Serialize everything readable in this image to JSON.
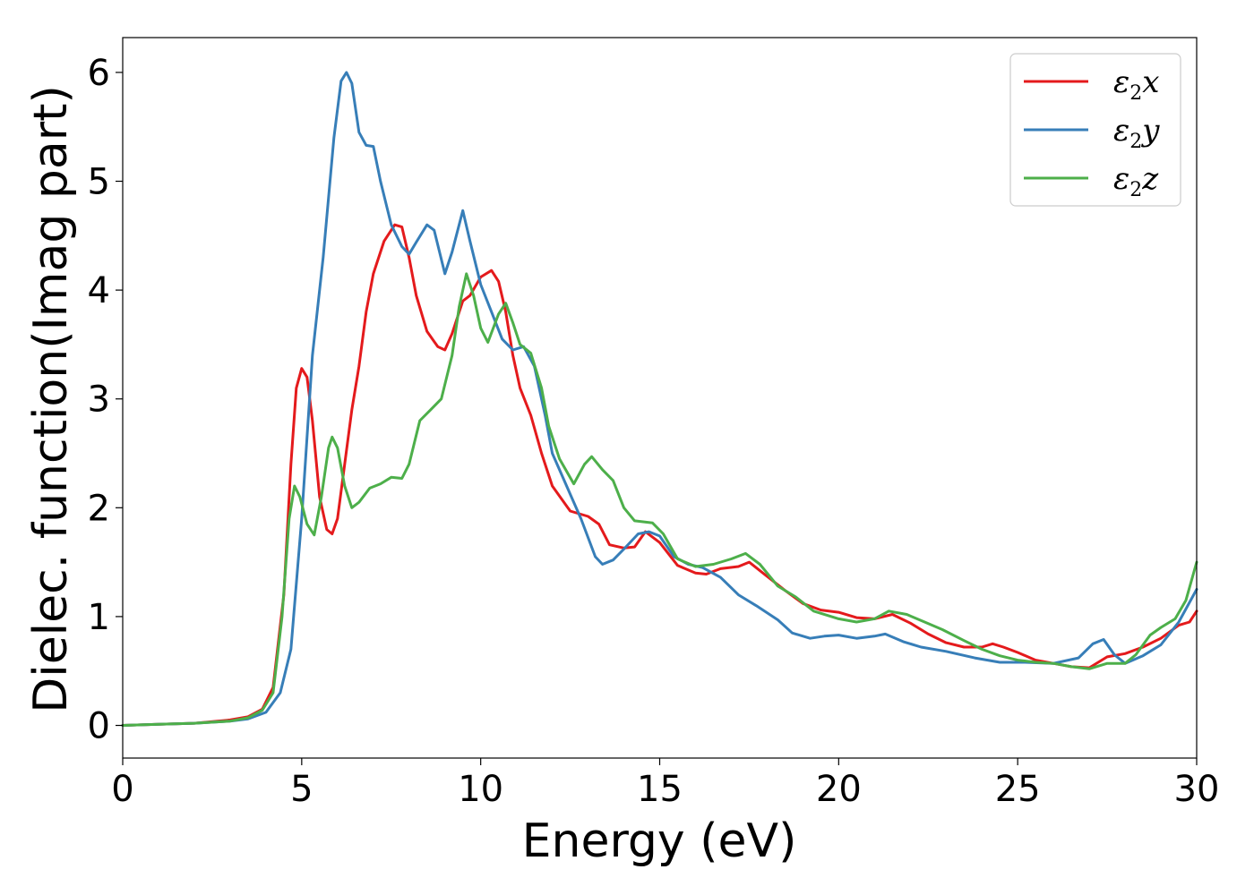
{
  "chart_data": {
    "type": "line",
    "title": "",
    "xlabel": "Energy (eV)",
    "ylabel": "Dielec. function(Imag part)",
    "xlim": [
      0,
      30
    ],
    "ylim": [
      -0.3,
      6.32
    ],
    "xticks": [
      0,
      5,
      10,
      15,
      20,
      25,
      30
    ],
    "yticks": [
      0,
      1,
      2,
      3,
      4,
      5,
      6
    ],
    "xtick_labels": [
      "0",
      "5",
      "10",
      "15",
      "20",
      "25",
      "30"
    ],
    "ytick_labels": [
      "0",
      "1",
      "2",
      "3",
      "4",
      "5",
      "6"
    ],
    "grid": false,
    "legend_position": "top-right",
    "series": [
      {
        "name": "ε2x",
        "legend_main": "ε",
        "legend_sub": "2",
        "legend_tail": "x",
        "color": "#e41a1c",
        "points": [
          [
            0,
            0
          ],
          [
            1,
            0.01
          ],
          [
            2,
            0.02
          ],
          [
            3,
            0.05
          ],
          [
            3.5,
            0.08
          ],
          [
            3.9,
            0.15
          ],
          [
            4.2,
            0.35
          ],
          [
            4.5,
            1.2
          ],
          [
            4.7,
            2.4
          ],
          [
            4.85,
            3.1
          ],
          [
            5.0,
            3.28
          ],
          [
            5.15,
            3.2
          ],
          [
            5.3,
            2.8
          ],
          [
            5.5,
            2.1
          ],
          [
            5.7,
            1.8
          ],
          [
            5.85,
            1.76
          ],
          [
            6.0,
            1.9
          ],
          [
            6.2,
            2.4
          ],
          [
            6.4,
            2.9
          ],
          [
            6.6,
            3.3
          ],
          [
            6.8,
            3.8
          ],
          [
            7.0,
            4.15
          ],
          [
            7.3,
            4.45
          ],
          [
            7.6,
            4.6
          ],
          [
            7.8,
            4.58
          ],
          [
            8.0,
            4.3
          ],
          [
            8.2,
            3.95
          ],
          [
            8.5,
            3.62
          ],
          [
            8.8,
            3.48
          ],
          [
            9.0,
            3.45
          ],
          [
            9.2,
            3.6
          ],
          [
            9.5,
            3.9
          ],
          [
            9.7,
            3.95
          ],
          [
            10.0,
            4.12
          ],
          [
            10.3,
            4.18
          ],
          [
            10.5,
            4.08
          ],
          [
            10.7,
            3.8
          ],
          [
            10.9,
            3.4
          ],
          [
            11.1,
            3.1
          ],
          [
            11.4,
            2.85
          ],
          [
            11.7,
            2.5
          ],
          [
            12.0,
            2.2
          ],
          [
            12.5,
            1.97
          ],
          [
            13.0,
            1.92
          ],
          [
            13.3,
            1.85
          ],
          [
            13.6,
            1.66
          ],
          [
            14.0,
            1.63
          ],
          [
            14.3,
            1.64
          ],
          [
            14.6,
            1.78
          ],
          [
            15.0,
            1.68
          ],
          [
            15.5,
            1.47
          ],
          [
            16.0,
            1.4
          ],
          [
            16.3,
            1.39
          ],
          [
            16.7,
            1.44
          ],
          [
            17.2,
            1.46
          ],
          [
            17.5,
            1.5
          ],
          [
            18.0,
            1.37
          ],
          [
            18.5,
            1.24
          ],
          [
            19.0,
            1.12
          ],
          [
            19.5,
            1.06
          ],
          [
            20.0,
            1.04
          ],
          [
            20.5,
            0.99
          ],
          [
            21.0,
            0.98
          ],
          [
            21.5,
            1.02
          ],
          [
            22.0,
            0.94
          ],
          [
            22.5,
            0.84
          ],
          [
            23.0,
            0.76
          ],
          [
            23.5,
            0.72
          ],
          [
            24.0,
            0.72
          ],
          [
            24.3,
            0.75
          ],
          [
            24.6,
            0.72
          ],
          [
            25.0,
            0.67
          ],
          [
            25.5,
            0.6
          ],
          [
            26.0,
            0.57
          ],
          [
            26.5,
            0.54
          ],
          [
            27.0,
            0.53
          ],
          [
            27.5,
            0.63
          ],
          [
            28.0,
            0.66
          ],
          [
            28.5,
            0.72
          ],
          [
            29.0,
            0.8
          ],
          [
            29.5,
            0.92
          ],
          [
            29.8,
            0.95
          ],
          [
            30.0,
            1.05
          ]
        ]
      },
      {
        "name": "ε2y",
        "legend_main": "ε",
        "legend_sub": "2",
        "legend_tail": "y",
        "color": "#377eb8",
        "points": [
          [
            0,
            0
          ],
          [
            1,
            0.01
          ],
          [
            2,
            0.02
          ],
          [
            3,
            0.04
          ],
          [
            3.5,
            0.06
          ],
          [
            4.0,
            0.12
          ],
          [
            4.4,
            0.3
          ],
          [
            4.7,
            0.7
          ],
          [
            5.0,
            1.9
          ],
          [
            5.3,
            3.4
          ],
          [
            5.6,
            4.3
          ],
          [
            5.9,
            5.4
          ],
          [
            6.1,
            5.92
          ],
          [
            6.25,
            6.0
          ],
          [
            6.4,
            5.9
          ],
          [
            6.6,
            5.45
          ],
          [
            6.8,
            5.33
          ],
          [
            7.0,
            5.32
          ],
          [
            7.2,
            5.0
          ],
          [
            7.5,
            4.6
          ],
          [
            7.8,
            4.4
          ],
          [
            8.0,
            4.33
          ],
          [
            8.2,
            4.44
          ],
          [
            8.5,
            4.6
          ],
          [
            8.7,
            4.55
          ],
          [
            9.0,
            4.15
          ],
          [
            9.2,
            4.35
          ],
          [
            9.5,
            4.73
          ],
          [
            9.7,
            4.45
          ],
          [
            10.0,
            4.05
          ],
          [
            10.3,
            3.8
          ],
          [
            10.6,
            3.55
          ],
          [
            10.9,
            3.45
          ],
          [
            11.2,
            3.48
          ],
          [
            11.5,
            3.3
          ],
          [
            11.8,
            2.85
          ],
          [
            12.0,
            2.5
          ],
          [
            12.4,
            2.2
          ],
          [
            12.8,
            1.9
          ],
          [
            13.2,
            1.55
          ],
          [
            13.4,
            1.48
          ],
          [
            13.7,
            1.52
          ],
          [
            14.0,
            1.62
          ],
          [
            14.4,
            1.76
          ],
          [
            14.7,
            1.78
          ],
          [
            15.0,
            1.74
          ],
          [
            15.4,
            1.55
          ],
          [
            15.8,
            1.48
          ],
          [
            16.2,
            1.45
          ],
          [
            16.7,
            1.36
          ],
          [
            17.2,
            1.2
          ],
          [
            17.7,
            1.1
          ],
          [
            18.3,
            0.97
          ],
          [
            18.7,
            0.85
          ],
          [
            19.2,
            0.8
          ],
          [
            19.6,
            0.82
          ],
          [
            20.0,
            0.83
          ],
          [
            20.5,
            0.8
          ],
          [
            21.0,
            0.82
          ],
          [
            21.3,
            0.84
          ],
          [
            21.8,
            0.77
          ],
          [
            22.3,
            0.72
          ],
          [
            23.0,
            0.68
          ],
          [
            23.8,
            0.62
          ],
          [
            24.5,
            0.58
          ],
          [
            25.2,
            0.58
          ],
          [
            26.0,
            0.57
          ],
          [
            26.7,
            0.62
          ],
          [
            27.1,
            0.75
          ],
          [
            27.4,
            0.79
          ],
          [
            27.7,
            0.65
          ],
          [
            28.0,
            0.57
          ],
          [
            28.5,
            0.64
          ],
          [
            29.0,
            0.74
          ],
          [
            29.5,
            0.95
          ],
          [
            30.0,
            1.25
          ]
        ]
      },
      {
        "name": "ε2z",
        "legend_main": "ε",
        "legend_sub": "2",
        "legend_tail": "z",
        "color": "#4daf4a",
        "points": [
          [
            0,
            0
          ],
          [
            1,
            0.01
          ],
          [
            2,
            0.02
          ],
          [
            3,
            0.04
          ],
          [
            3.5,
            0.07
          ],
          [
            3.9,
            0.14
          ],
          [
            4.2,
            0.3
          ],
          [
            4.45,
            1.0
          ],
          [
            4.65,
            1.9
          ],
          [
            4.8,
            2.2
          ],
          [
            4.95,
            2.1
          ],
          [
            5.15,
            1.85
          ],
          [
            5.35,
            1.75
          ],
          [
            5.55,
            2.1
          ],
          [
            5.75,
            2.55
          ],
          [
            5.85,
            2.65
          ],
          [
            6.0,
            2.55
          ],
          [
            6.2,
            2.2
          ],
          [
            6.4,
            2.0
          ],
          [
            6.6,
            2.05
          ],
          [
            6.9,
            2.18
          ],
          [
            7.2,
            2.22
          ],
          [
            7.5,
            2.28
          ],
          [
            7.8,
            2.27
          ],
          [
            8.0,
            2.4
          ],
          [
            8.3,
            2.8
          ],
          [
            8.6,
            2.9
          ],
          [
            8.9,
            3.0
          ],
          [
            9.2,
            3.4
          ],
          [
            9.4,
            3.85
          ],
          [
            9.6,
            4.15
          ],
          [
            9.8,
            3.95
          ],
          [
            10.0,
            3.65
          ],
          [
            10.2,
            3.52
          ],
          [
            10.5,
            3.78
          ],
          [
            10.7,
            3.88
          ],
          [
            10.9,
            3.7
          ],
          [
            11.1,
            3.5
          ],
          [
            11.4,
            3.42
          ],
          [
            11.7,
            3.1
          ],
          [
            11.9,
            2.75
          ],
          [
            12.2,
            2.45
          ],
          [
            12.6,
            2.22
          ],
          [
            12.9,
            2.4
          ],
          [
            13.1,
            2.47
          ],
          [
            13.4,
            2.35
          ],
          [
            13.7,
            2.25
          ],
          [
            14.0,
            2.0
          ],
          [
            14.3,
            1.88
          ],
          [
            14.8,
            1.86
          ],
          [
            15.1,
            1.76
          ],
          [
            15.5,
            1.53
          ],
          [
            16.0,
            1.46
          ],
          [
            16.5,
            1.48
          ],
          [
            17.0,
            1.53
          ],
          [
            17.4,
            1.58
          ],
          [
            17.8,
            1.48
          ],
          [
            18.3,
            1.28
          ],
          [
            18.8,
            1.18
          ],
          [
            19.3,
            1.05
          ],
          [
            20.0,
            0.98
          ],
          [
            20.5,
            0.95
          ],
          [
            21.0,
            0.98
          ],
          [
            21.4,
            1.05
          ],
          [
            21.9,
            1.02
          ],
          [
            22.4,
            0.95
          ],
          [
            22.9,
            0.88
          ],
          [
            23.5,
            0.78
          ],
          [
            24.0,
            0.7
          ],
          [
            24.5,
            0.64
          ],
          [
            25.0,
            0.6
          ],
          [
            25.5,
            0.58
          ],
          [
            26.0,
            0.57
          ],
          [
            26.5,
            0.54
          ],
          [
            27.0,
            0.52
          ],
          [
            27.5,
            0.57
          ],
          [
            28.0,
            0.57
          ],
          [
            28.3,
            0.65
          ],
          [
            28.7,
            0.83
          ],
          [
            29.0,
            0.9
          ],
          [
            29.4,
            0.98
          ],
          [
            29.7,
            1.15
          ],
          [
            30.0,
            1.5
          ]
        ]
      }
    ]
  }
}
